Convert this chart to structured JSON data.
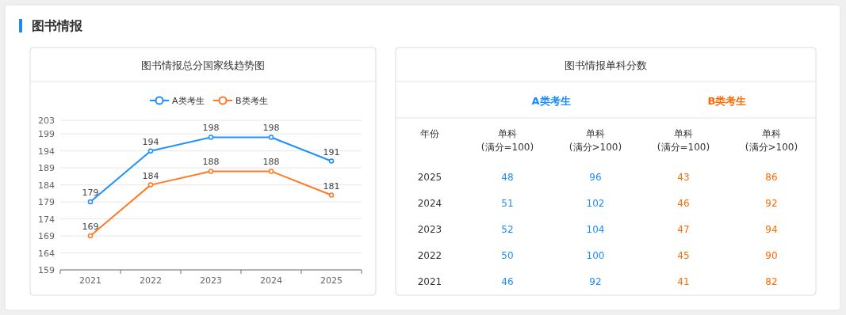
{
  "chart_data": [
    {
      "type": "line",
      "title": "图书情报总分国家线趋势图",
      "annotations": [
        "图书情报"
      ],
      "categories": [
        "2021",
        "2022",
        "2023",
        "2024",
        "2025"
      ],
      "series": [
        {
          "name": "A类考生",
          "color": "#1e90ff",
          "values": [
            179,
            194,
            198,
            198,
            191
          ]
        },
        {
          "name": "B类考生",
          "color": "#ff7a22",
          "values": [
            169,
            184,
            188,
            188,
            181
          ]
        }
      ],
      "ylim": [
        159,
        203
      ],
      "yticks": [
        159,
        164,
        169,
        174,
        179,
        184,
        189,
        194,
        199,
        203
      ],
      "grid": "y",
      "legend": "top",
      "marker": "circle",
      "data_labels": true
    },
    {
      "type": "heatmap",
      "title": "图书情报单科分数",
      "colors": [
        "#1a8cff",
        "#1a8cff",
        "#ff6a00",
        "#ff6a00"
      ],
      "annotations": [
        "A类考生",
        "B类考生",
        "年份"
      ],
      "categories": [
        "单科\n(满分=100)",
        "单科\n(满分>100)",
        "单科\n(满分=100)",
        "单科\n(满分>100)"
      ],
      "y_categories": [
        "2025",
        "2024",
        "2023",
        "2022",
        "2021"
      ],
      "data_labels": true,
      "cells": [
        [
          48,
          96,
          43,
          86
        ],
        [
          51,
          102,
          46,
          92
        ],
        [
          52,
          104,
          47,
          94
        ],
        [
          50,
          100,
          45,
          90
        ],
        [
          46,
          92,
          41,
          82
        ]
      ]
    }
  ]
}
